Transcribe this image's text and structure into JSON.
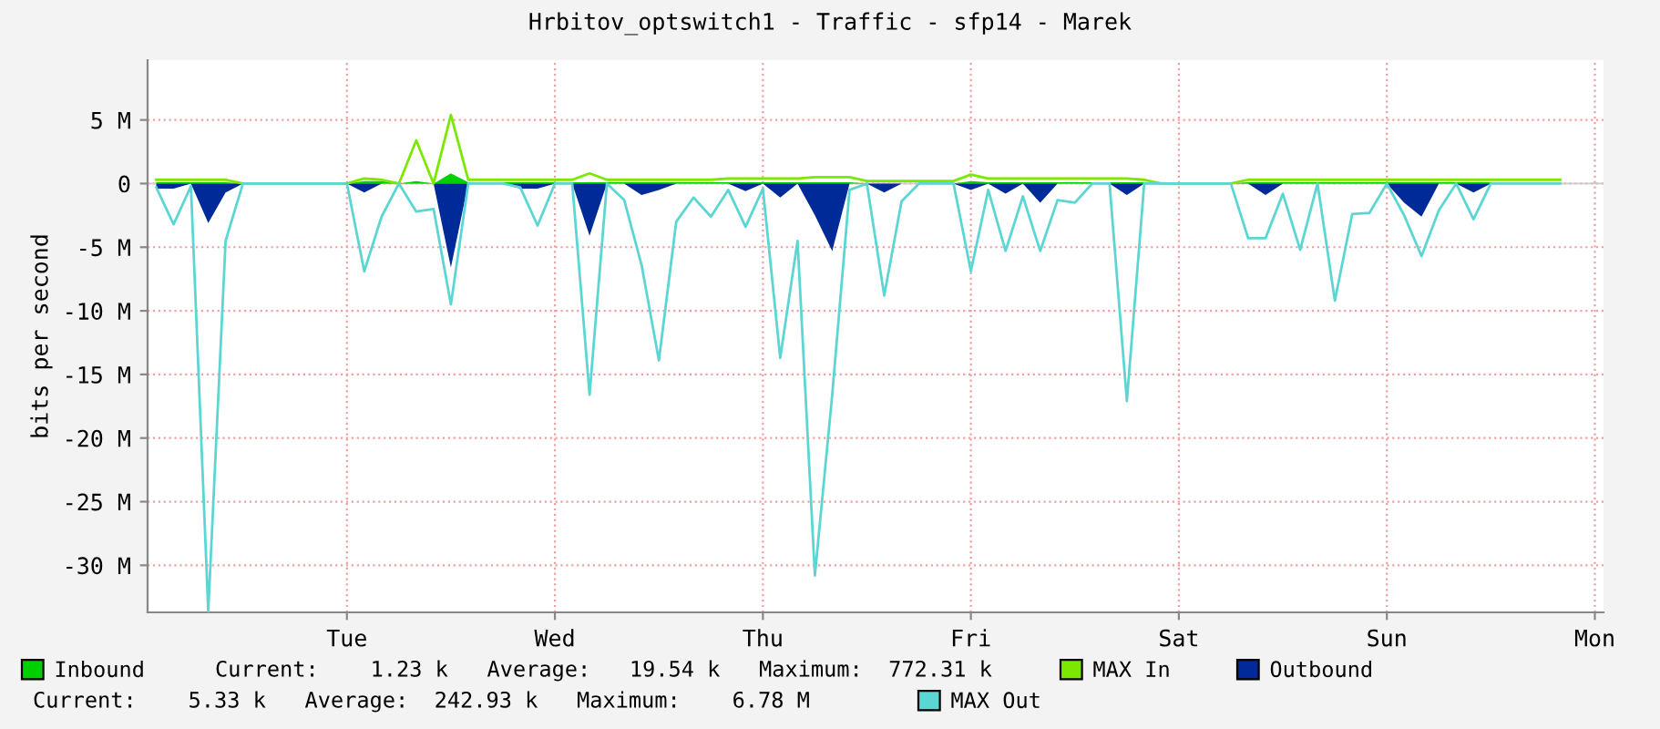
{
  "chart_data": {
    "type": "area",
    "title": "Hrbitov_optswitch1 - Traffic - sfp14 - Marek",
    "ylabel": "bits per second",
    "ylim": [
      -33.7,
      9.7
    ],
    "yticks": [
      {
        "value": 5,
        "label": "5 M"
      },
      0,
      {
        "value": -5,
        "label": "-5 M"
      },
      {
        "value": -10,
        "label": "-10 M"
      },
      {
        "value": -15,
        "label": "-15 M"
      },
      {
        "value": -20,
        "label": "-20 M"
      },
      {
        "value": -25,
        "label": "-25 M"
      },
      {
        "value": -30,
        "label": "-30 M"
      }
    ],
    "grid": true,
    "legend": "bottom",
    "annotations": [
      "Current:    1.23 k   Average:   19.54 k   Maximum:  772.31 k",
      "Current:    5.33 k   Average:  242.93 k   Maximum:    6.78 M"
    ],
    "categories": [
      null,
      null,
      null,
      null,
      null,
      null,
      null,
      null,
      null,
      null,
      null,
      "Tue",
      null,
      null,
      null,
      null,
      null,
      null,
      null,
      null,
      null,
      null,
      null,
      "Wed",
      null,
      null,
      null,
      null,
      null,
      null,
      null,
      null,
      null,
      null,
      null,
      "Thu",
      null,
      null,
      null,
      null,
      null,
      null,
      null,
      null,
      null,
      null,
      null,
      "Fri",
      null,
      null,
      null,
      null,
      null,
      null,
      null,
      null,
      null,
      null,
      null,
      "Sat",
      null,
      null,
      null,
      null,
      null,
      null,
      null,
      null,
      null,
      null,
      null,
      "Sun",
      null,
      null,
      null,
      null,
      null,
      null,
      null,
      null,
      null,
      null,
      null,
      "Mon"
    ],
    "series": [
      {
        "name": "Inbound",
        "color": "#00cf00",
        "values": [
          0.1,
          0.1,
          0.1,
          0.1,
          0.1,
          0,
          0,
          0,
          0,
          0,
          0,
          0,
          0.2,
          0.2,
          0,
          0.2,
          0,
          0.8,
          0.1,
          0.1,
          0.1,
          0.1,
          0.1,
          0.1,
          0.1,
          0.1,
          0.1,
          0.1,
          0.1,
          0.1,
          0.1,
          0.1,
          0.1,
          0.1,
          0.1,
          0.1,
          0.1,
          0.1,
          0.1,
          0.1,
          0.1,
          0,
          0,
          0,
          0,
          0,
          0,
          0.2,
          0.1,
          0.1,
          0.1,
          0.1,
          0.1,
          0.1,
          0.1,
          0.1,
          0.1,
          0.1,
          0,
          0,
          0,
          0,
          0,
          0.1,
          0.1,
          0.1,
          0.1,
          0.1,
          0.1,
          0.1,
          0.1,
          0.1,
          0.1,
          0.1,
          0.1,
          0.1,
          0.1,
          0.1,
          0.1,
          0.1,
          0.1,
          0.1,
          null,
          null
        ]
      },
      {
        "name": "MAX In",
        "type": "line",
        "color": "#7ce800",
        "values": [
          0.3,
          0.3,
          0.3,
          0.3,
          0.3,
          0,
          0,
          0,
          0,
          0,
          0,
          0,
          0.4,
          0.3,
          0,
          3.4,
          0,
          5.4,
          0.3,
          0.3,
          0.3,
          0.3,
          0.3,
          0.3,
          0.3,
          0.8,
          0.3,
          0.3,
          0.3,
          0.3,
          0.3,
          0.3,
          0.3,
          0.4,
          0.4,
          0.4,
          0.4,
          0.4,
          0.5,
          0.5,
          0.5,
          0.2,
          0.2,
          0.2,
          0.2,
          0.2,
          0.2,
          0.7,
          0.4,
          0.4,
          0.4,
          0.4,
          0.4,
          0.4,
          0.4,
          0.4,
          0.4,
          0.3,
          0,
          0,
          0,
          0,
          0,
          0.3,
          0.3,
          0.3,
          0.3,
          0.3,
          0.3,
          0.3,
          0.3,
          0.3,
          0.3,
          0.3,
          0.3,
          0.3,
          0.3,
          0.3,
          0.3,
          0.3,
          0.3,
          0.3,
          null,
          null
        ]
      },
      {
        "name": "Outbound",
        "color": "#002a97",
        "values": [
          -0.4,
          -0.4,
          0,
          -3.1,
          -0.7,
          0,
          0,
          0,
          0,
          0,
          0,
          0,
          -0.7,
          0,
          0,
          0,
          0,
          -6.6,
          0,
          0,
          0,
          -0.4,
          -0.4,
          0,
          0,
          -4.1,
          0,
          0,
          -0.9,
          -0.5,
          0,
          0,
          0,
          0,
          -0.6,
          0,
          -1.1,
          0,
          -2.5,
          -5.3,
          0,
          0,
          -0.7,
          0,
          0,
          0,
          0,
          -0.5,
          0,
          -0.8,
          0,
          -1.5,
          0,
          0,
          0,
          0,
          -0.9,
          0,
          0,
          0,
          0,
          0,
          0,
          0,
          -0.9,
          0,
          0,
          0,
          0,
          0,
          0,
          0,
          -1.5,
          -2.6,
          0,
          0,
          -0.7,
          0,
          0,
          0,
          0,
          0,
          null,
          null
        ]
      },
      {
        "name": "MAX Out",
        "type": "line",
        "color": "#5cd6d3",
        "values": [
          -0.3,
          -3.2,
          -0.2,
          -33.6,
          -4.5,
          0,
          0,
          0,
          0,
          0,
          0,
          0,
          -6.9,
          -2.6,
          0,
          -2.2,
          -2.0,
          -9.5,
          0,
          0,
          0,
          -0.3,
          -3.3,
          0,
          0,
          -16.6,
          0,
          -1.3,
          -6.4,
          -13.9,
          -3.0,
          -1.1,
          -2.6,
          -0.5,
          -3.4,
          -0.4,
          -13.7,
          -4.5,
          -30.8,
          -16.6,
          -0.5,
          0,
          -8.8,
          -1.4,
          0,
          0,
          0,
          -6.9,
          -0.5,
          -5.3,
          -1.0,
          -5.3,
          -1.3,
          -1.5,
          0,
          0,
          -17.1,
          0,
          0,
          0,
          0,
          0,
          0,
          -4.3,
          -4.3,
          -0.8,
          -5.2,
          0,
          -9.2,
          -2.4,
          -2.3,
          0,
          -2.5,
          -5.7,
          -2.1,
          0,
          -2.8,
          0,
          0,
          0,
          0,
          0,
          null,
          null
        ]
      }
    ]
  }
}
